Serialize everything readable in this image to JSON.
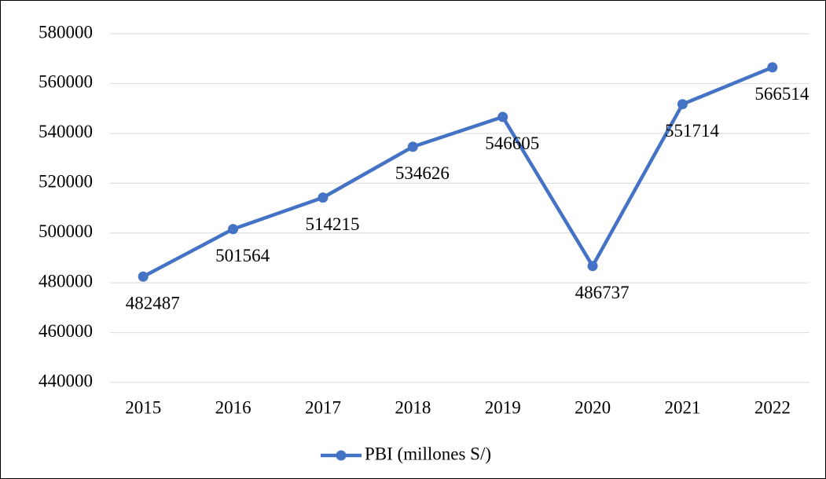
{
  "chart_data": {
    "type": "line",
    "categories": [
      "2015",
      "2016",
      "2017",
      "2018",
      "2019",
      "2020",
      "2021",
      "2022"
    ],
    "series": [
      {
        "name": "PBI (millones S/)",
        "color": "#4472c4",
        "values": [
          482487,
          501564,
          514215,
          534626,
          546605,
          486737,
          551714,
          566514
        ]
      }
    ],
    "ylim": [
      440000,
      580000
    ],
    "yticks": [
      440000,
      460000,
      480000,
      500000,
      520000,
      540000,
      560000,
      580000
    ],
    "grid": true,
    "legend": "bottom"
  }
}
